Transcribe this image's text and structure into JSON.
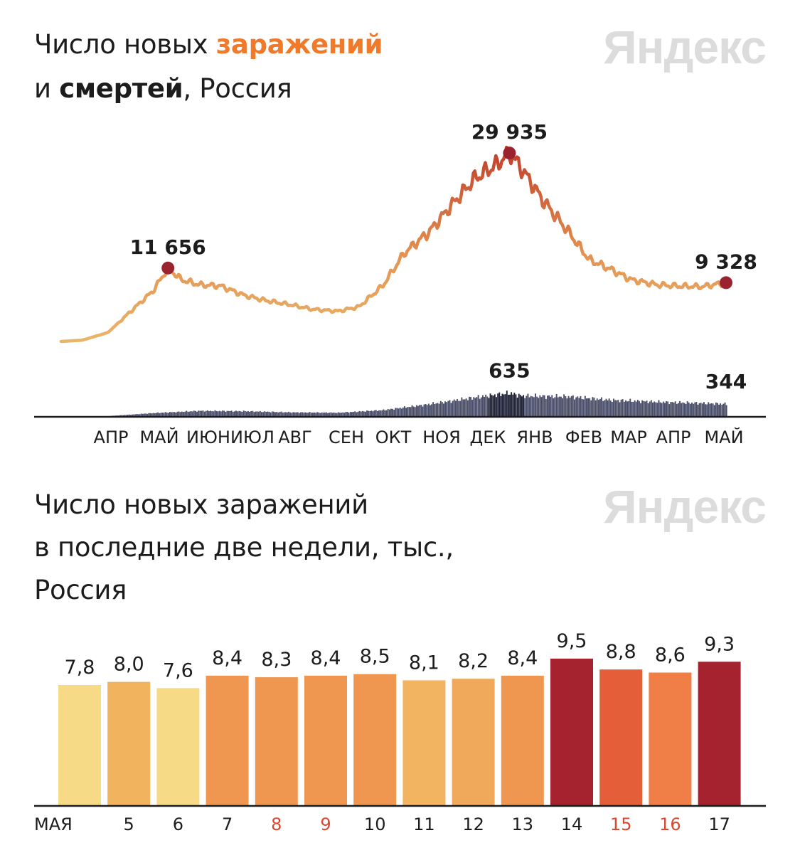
{
  "brand": "Яндекс",
  "colors": {
    "line_low": "#e8b56a",
    "line_high": "#c2422c",
    "marker": "#9b2330",
    "deaths": "#4b4e69",
    "deaths_peak": "#1e2236",
    "axis": "#1c1c1c",
    "weekend_label": "#d9472f"
  },
  "chart1": {
    "title_prefix": "Число новых ",
    "title_accent": "заражений",
    "title_line2_prefix": "и ",
    "title_bold": "смертей",
    "title_suffix": ", Россия"
  },
  "chart2": {
    "title_line1": "Число новых заражений",
    "title_line2": "в последние две недели, тыс.,",
    "title_line3": "Россия"
  },
  "chart_data": [
    {
      "type": "line",
      "series": [
        {
          "name": "заражений",
          "x": [
            "2020-03-01",
            "2020-03-15",
            "2020-04-01",
            "2020-04-15",
            "2020-05-01",
            "2020-05-11",
            "2020-05-20",
            "2020-06-01",
            "2020-06-15",
            "2020-07-01",
            "2020-07-15",
            "2020-08-01",
            "2020-08-15",
            "2020-09-01",
            "2020-09-15",
            "2020-10-01",
            "2020-10-15",
            "2020-11-01",
            "2020-11-15",
            "2020-12-01",
            "2020-12-15",
            "2020-12-24",
            "2021-01-01",
            "2021-01-15",
            "2021-02-01",
            "2021-02-15",
            "2021-03-01",
            "2021-03-15",
            "2021-04-01",
            "2021-04-15",
            "2021-05-01",
            "2021-05-17"
          ],
          "values": [
            0,
            200,
            1400,
            4500,
            8000,
            11656,
            9800,
            9000,
            8800,
            7300,
            6500,
            5800,
            5100,
            4800,
            5500,
            8900,
            14000,
            17500,
            21500,
            25900,
            28000,
            29935,
            27500,
            22500,
            17500,
            13000,
            11500,
            9800,
            9000,
            8800,
            8700,
            9328
          ]
        },
        {
          "name": "смертей",
          "x": [
            "2020-04-01",
            "2020-05-01",
            "2020-06-01",
            "2020-07-01",
            "2020-08-01",
            "2020-09-01",
            "2020-10-01",
            "2020-11-01",
            "2020-12-01",
            "2020-12-24",
            "2021-01-01",
            "2021-02-01",
            "2021-03-01",
            "2021-04-01",
            "2021-05-17"
          ],
          "values": [
            20,
            100,
            160,
            150,
            120,
            110,
            180,
            340,
            520,
            635,
            560,
            540,
            450,
            400,
            344
          ]
        }
      ],
      "annotations": [
        "11 656",
        "29 935",
        "9 328",
        "635",
        "344"
      ],
      "x_ticks": [
        "АПР",
        "МАЙ",
        "ИЮН",
        "ИЮЛ",
        "АВГ",
        "СЕН",
        "ОКТ",
        "НОЯ",
        "ДЕК",
        "ЯНВ",
        "ФЕВ",
        "МАР",
        "АПР",
        "МАЙ"
      ],
      "x_range": [
        "2020-03-01",
        "2021-05-17"
      ],
      "grid": false,
      "legend": "none"
    },
    {
      "type": "bar",
      "categories": [
        "МАЯ",
        "5",
        "6",
        "7",
        "8",
        "9",
        "10",
        "11",
        "12",
        "13",
        "14",
        "15",
        "16",
        "17"
      ],
      "values": [
        7.8,
        8.0,
        7.6,
        8.4,
        8.3,
        8.4,
        8.5,
        8.1,
        8.2,
        8.4,
        9.5,
        8.8,
        8.6,
        9.3
      ],
      "value_labels": [
        "7,8",
        "8,0",
        "7,6",
        "8,4",
        "8,3",
        "8,4",
        "8,5",
        "8,1",
        "8,2",
        "8,4",
        "9,5",
        "8,8",
        "8,6",
        "9,3"
      ],
      "colors": [
        "#f7da85",
        "#f1b35e",
        "#f7da85",
        "#ef9650",
        "#ef9650",
        "#ef9650",
        "#ef9650",
        "#f2b461",
        "#f0a95a",
        "#ef9650",
        "#a5222f",
        "#e45e3a",
        "#ef7f47",
        "#a5222f"
      ],
      "weekend": [
        false,
        false,
        false,
        false,
        true,
        true,
        false,
        false,
        false,
        false,
        false,
        true,
        true,
        false
      ],
      "ylim": [
        0,
        10
      ],
      "grid": false,
      "legend": "none"
    }
  ]
}
